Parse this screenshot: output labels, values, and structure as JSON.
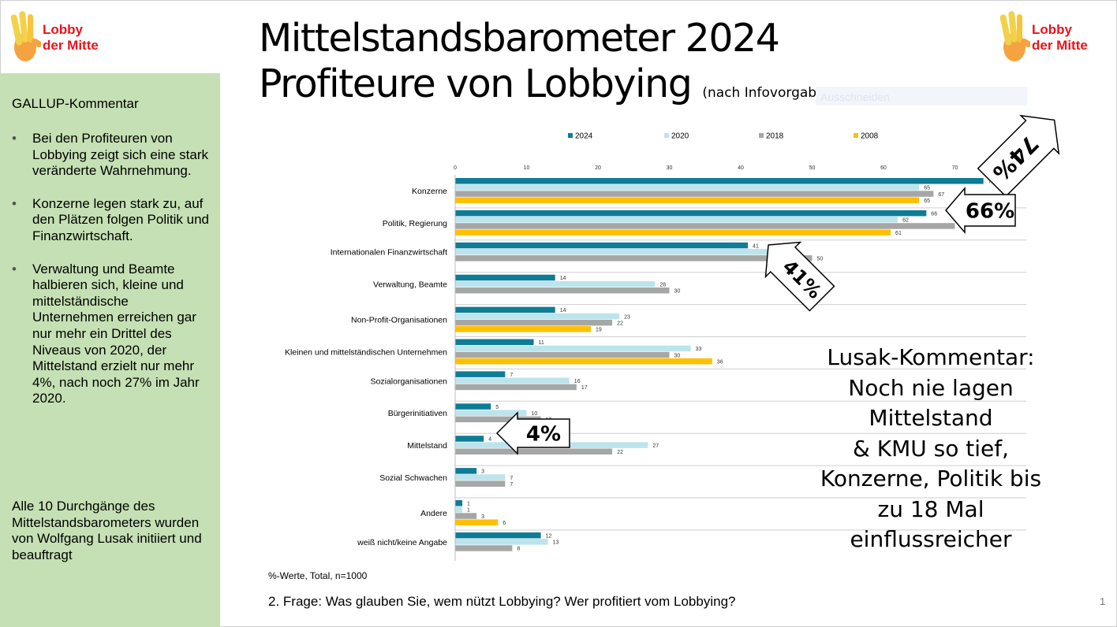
{
  "title_line1": "Mittelstandsbarometer 2024",
  "title_line2": "Profiteure von Lobbying",
  "title_note": "(nach Infovorgabe zu Lobbying)",
  "ghost_text": "Ausschneiden",
  "logo": {
    "line1": "Lobby",
    "line2": "der Mitte"
  },
  "sidebar": {
    "heading": "GALLUP-Kommentar",
    "bullets": [
      "Bei den Profiteuren von Lobbying zeigt sich eine stark veränderte Wahrnehmung.",
      "Konzerne legen stark zu, auf den Plätzen folgen Politik und Finanzwirtschaft.",
      "Verwaltung und Beamte halbieren sich, kleine und mittelständische Unternehmen erreichen gar nur mehr ein Drittel des Niveaus von 2020, der Mittelstand erzielt nur mehr 4%, nach noch 27% im Jahr 2020."
    ],
    "footer": "Alle 10 Durchgänge des Mittelstandsbarometers wurden von Wolfgang Lusak initiiert und beauftragt"
  },
  "lusak_comment": "Lusak-Kommentar:\nNoch nie lagen\nMittelstand\n& KMU so tief,\nKonzerne, Politik bis\nzu 18 Mal\neinflussreicher",
  "note": "%-Werte, Total, n=1000",
  "question": "2. Frage: Was glauben Sie, wem nützt Lobbying? Wer profitiert vom Lobbying?",
  "page_number": "1",
  "callouts": [
    {
      "label": "74%",
      "category": "Konzerne"
    },
    {
      "label": "66%",
      "category": "Politik, Regierung"
    },
    {
      "label": "41%",
      "category": "Internationalen Finanzwirtschaft"
    },
    {
      "label": "4%",
      "category": "Mittelstand"
    }
  ],
  "colors": {
    "s2024": "#0e7c96",
    "s2020": "#bde4ec",
    "s2018": "#a6a6a6",
    "s2008": "#ffc000",
    "sidebar": "#c5e0b4",
    "logo_text": "#e8141c"
  },
  "chart_data": {
    "type": "bar",
    "orientation": "horizontal",
    "categories": [
      "Konzerne",
      "Politik, Regierung",
      "Internationalen Finanzwirtschaft",
      "Verwaltung, Beamte",
      "Non-Profit-Organisationen",
      "Kleinen und mittelständischen Unternehmen",
      "Sozialorganisationen",
      "Bürgerinitiativen",
      "Mittelstand",
      "Sozial Schwachen",
      "Andere",
      "weiß nicht/keine Angabe"
    ],
    "series": [
      {
        "name": "2024",
        "color": "#0e7c96",
        "values": [
          74,
          66,
          41,
          14,
          14,
          11,
          7,
          5,
          4,
          3,
          1,
          12
        ]
      },
      {
        "name": "2020",
        "color": "#bde4ec",
        "values": [
          65,
          62,
          46,
          28,
          23,
          33,
          16,
          10,
          27,
          7,
          1,
          13
        ]
      },
      {
        "name": "2018",
        "color": "#a6a6a6",
        "values": [
          67,
          70,
          50,
          30,
          22,
          30,
          17,
          12,
          22,
          7,
          3,
          8
        ]
      },
      {
        "name": "2008",
        "color": "#ffc000",
        "values": [
          65,
          61,
          null,
          null,
          19,
          36,
          null,
          null,
          null,
          null,
          6,
          null
        ]
      }
    ],
    "xlim": [
      0,
      80
    ],
    "ticks": [
      0,
      10,
      20,
      30,
      40,
      50,
      60,
      70,
      80
    ],
    "legend_position": "top"
  }
}
